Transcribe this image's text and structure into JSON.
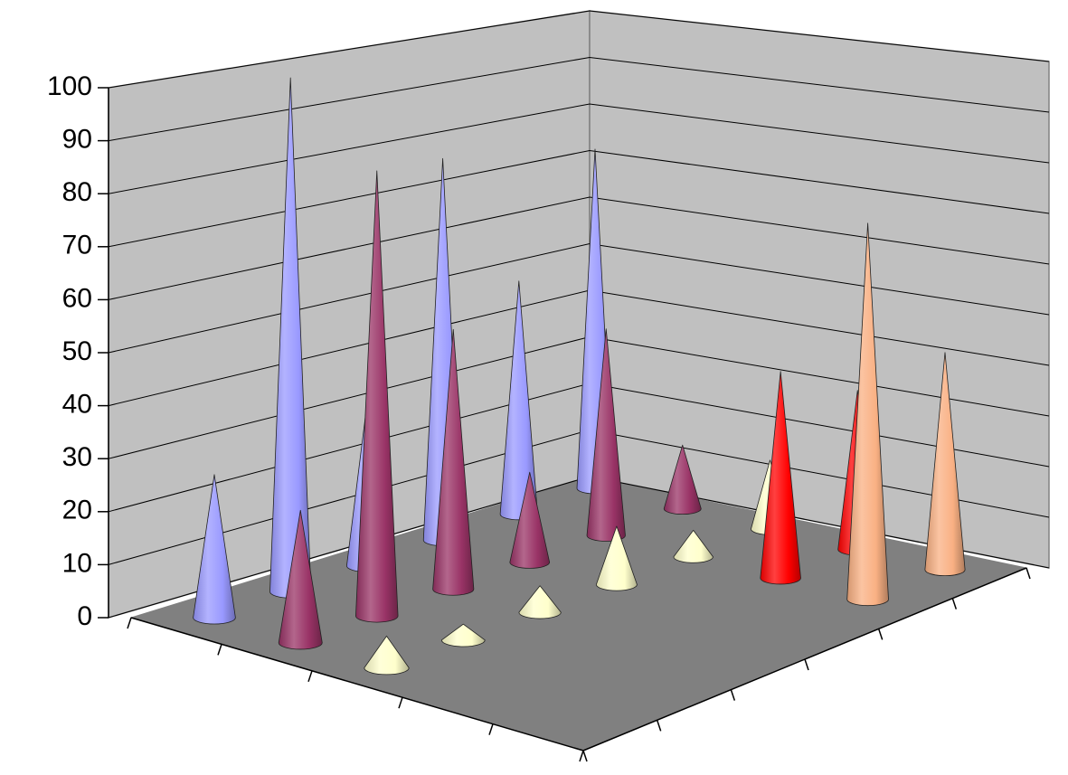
{
  "chart_data": {
    "type": "cone3d",
    "categories": [
      null,
      null,
      null,
      null,
      null,
      null
    ],
    "series": [
      {
        "color": "#9999ff",
        "values": [
          27,
          97,
          30,
          72,
          44,
          64
        ]
      },
      {
        "color": "#993366",
        "values": [
          25,
          84,
          49,
          17,
          39,
          12
        ]
      },
      {
        "color": "#ffffcc",
        "values": [
          6,
          3,
          5,
          11,
          5,
          13
        ]
      },
      {
        "color": "#ff0000",
        "values": [
          0,
          0,
          0,
          0,
          39,
          30
        ]
      },
      {
        "color": "#f9b083",
        "values": [
          0,
          0,
          0,
          0,
          71,
          41
        ]
      }
    ],
    "ylim": [
      0,
      100
    ],
    "yticks": [
      0,
      10,
      20,
      30,
      40,
      50,
      60,
      70,
      80,
      90,
      100
    ],
    "grid": true
  }
}
